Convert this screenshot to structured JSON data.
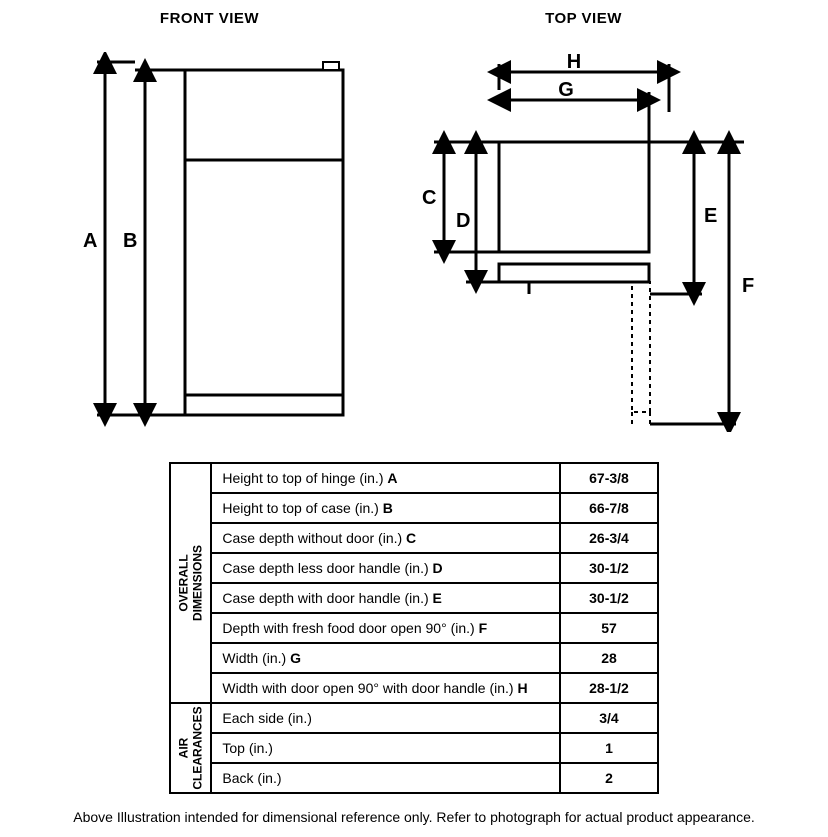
{
  "views": {
    "front": {
      "title": "FRONT VIEW"
    },
    "top": {
      "title": "TOP VIEW"
    }
  },
  "dim_labels": {
    "A": "A",
    "B": "B",
    "C": "C",
    "D": "D",
    "E": "E",
    "F": "F",
    "G": "G",
    "H": "H"
  },
  "diagram_style": {
    "stroke": "#000000",
    "stroke_width_shape": 3,
    "stroke_width_dim": 3,
    "dash_pattern": "4,4",
    "background": "#ffffff",
    "font_family": "Arial",
    "label_font_size": 20,
    "label_font_weight": "bold"
  },
  "table": {
    "sections": [
      {
        "header": "OVERALL\nDIMENSIONS",
        "rows": [
          {
            "label": "Height to top of hinge (in.)",
            "key": "A",
            "value": "67-3/8"
          },
          {
            "label": "Height to top of case (in.)",
            "key": "B",
            "value": "66-7/8"
          },
          {
            "label": "Case depth without door (in.)",
            "key": "C",
            "value": "26-3/4"
          },
          {
            "label": "Case depth less door handle (in.)",
            "key": "D",
            "value": "30-1/2"
          },
          {
            "label": "Case depth with door handle (in.)",
            "key": "E",
            "value": "30-1/2"
          },
          {
            "label": "Depth with fresh food door open 90° (in.)",
            "key": "F",
            "value": "57"
          },
          {
            "label": "Width (in.)",
            "key": "G",
            "value": "28"
          },
          {
            "label": "Width with door open 90° with door handle (in.)",
            "key": "H",
            "value": "28-1/2"
          }
        ]
      },
      {
        "header": "AIR\nCLEARANCES",
        "rows": [
          {
            "label": "Each side (in.)",
            "key": "",
            "value": "3/4"
          },
          {
            "label": "Top (in.)",
            "key": "",
            "value": "1"
          },
          {
            "label": "Back (in.)",
            "key": "",
            "value": "2"
          }
        ]
      }
    ]
  },
  "footnote": "Above Illustration intended for dimensional reference only. Refer to photograph for actual product appearance."
}
